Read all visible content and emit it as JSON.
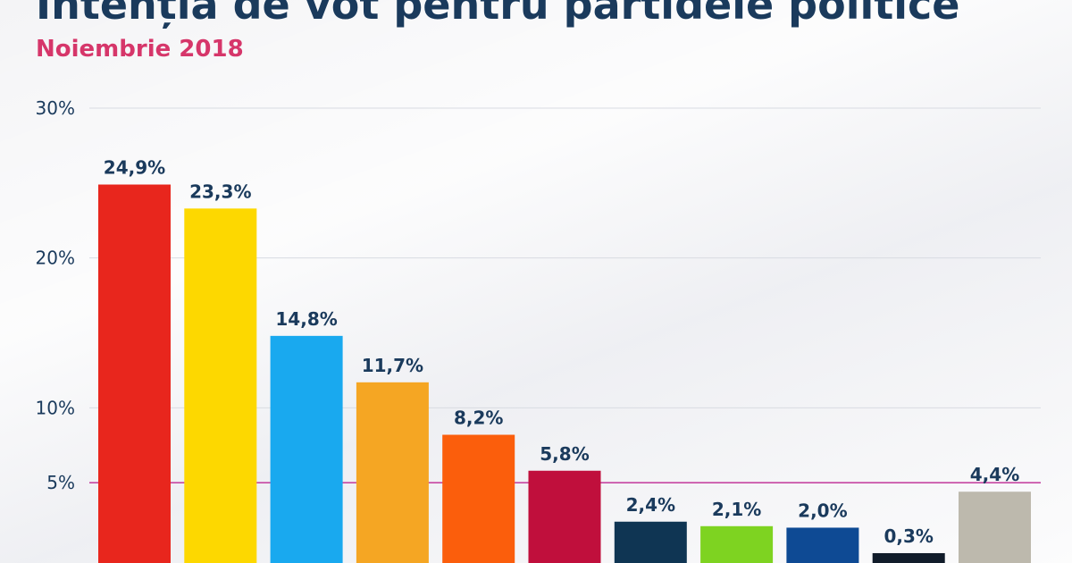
{
  "chart_data": {
    "type": "bar",
    "title": "Intenția de vot pentru partidele politice",
    "subtitle": "Noiembrie 2018",
    "ylim": [
      0,
      30
    ],
    "yticks": [
      {
        "value": 30,
        "label": "30%"
      },
      {
        "value": 20,
        "label": "20%"
      },
      {
        "value": 10,
        "label": "10%"
      },
      {
        "value": 5,
        "label": "5%"
      }
    ],
    "threshold": {
      "value": 5,
      "color": "#c2379a"
    },
    "grid": true,
    "bars": [
      {
        "value": 24.9,
        "label": "24,9%",
        "color": "#e8261d"
      },
      {
        "value": 23.3,
        "label": "23,3%",
        "color": "#fdd800"
      },
      {
        "value": 14.8,
        "label": "14,8%",
        "color": "#19a9ef"
      },
      {
        "value": 11.7,
        "label": "11,7%",
        "color": "#f5a623"
      },
      {
        "value": 8.2,
        "label": "8,2%",
        "color": "#fb5e0c"
      },
      {
        "value": 5.8,
        "label": "5,8%",
        "color": "#c00f3c"
      },
      {
        "value": 2.4,
        "label": "2,4%",
        "color": "#0f3553"
      },
      {
        "value": 2.1,
        "label": "2,1%",
        "color": "#7ed321"
      },
      {
        "value": 2.0,
        "label": "2,0%",
        "color": "#0e4a94"
      },
      {
        "value": 0.3,
        "label": "0,3%",
        "color": "#111c2a"
      },
      {
        "value": 4.4,
        "label": "4,4%",
        "color": "#bdb9ad"
      }
    ]
  }
}
